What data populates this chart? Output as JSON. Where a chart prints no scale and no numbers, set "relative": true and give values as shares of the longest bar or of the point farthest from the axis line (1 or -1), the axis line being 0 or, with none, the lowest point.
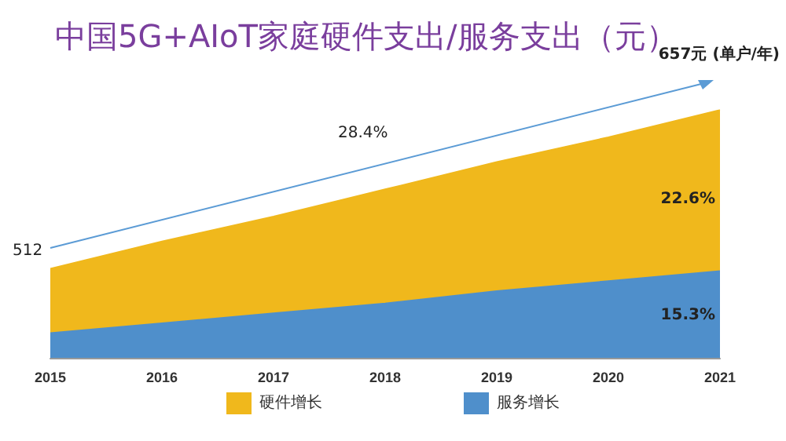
{
  "chart_data": {
    "type": "area",
    "title": "中国5G+AIoT家庭硬件支出/服务支出（元）",
    "relative": true,
    "stacked": true,
    "legend": "bottom",
    "grid": false,
    "categories": [
      "2015",
      "2016",
      "2017",
      "2018",
      "2019",
      "2020",
      "2021"
    ],
    "series": [
      {
        "name": "服务增长",
        "color": "#4f8fcb",
        "values": [
          0.1,
          0.14,
          0.18,
          0.22,
          0.27,
          0.31,
          0.35
        ]
      },
      {
        "name": "硬件增长",
        "color": "#f0b81c",
        "values": [
          0.26,
          0.33,
          0.39,
          0.46,
          0.52,
          0.58,
          0.65
        ]
      }
    ],
    "annotations": [
      "512",
      "657元 (单户/年)",
      "28.4%",
      "22.6%",
      "15.3%"
    ]
  }
}
